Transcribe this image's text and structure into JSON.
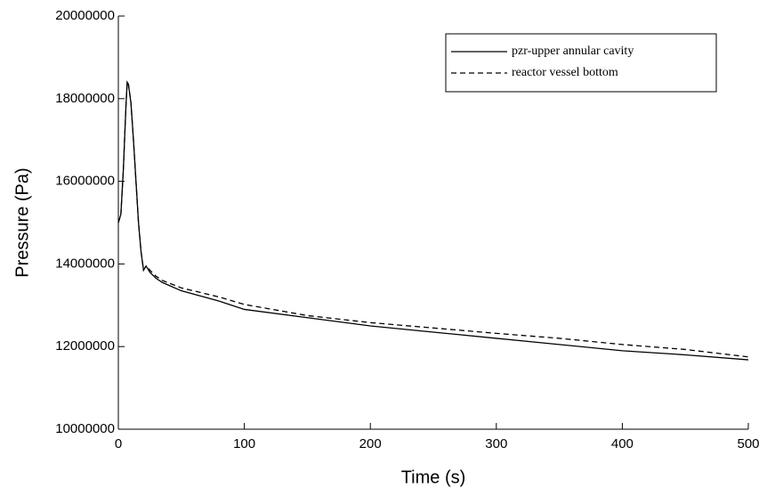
{
  "chart_data": {
    "type": "line",
    "x_label": "Time (s)",
    "y_label": "Pressure (Pa)",
    "x": [
      0,
      2,
      4,
      6,
      7,
      8,
      10,
      12,
      14,
      16,
      18,
      20,
      22,
      25,
      30,
      35,
      50,
      80,
      100,
      150,
      200,
      250,
      300,
      350,
      400,
      450,
      500
    ],
    "series": [
      {
        "name": "pzr-upper annular cavity",
        "color": "#000000",
        "linestyle": "solid",
        "values": [
          15000000,
          15200000,
          16300000,
          17800000,
          18400000,
          18350000,
          17900000,
          17000000,
          16000000,
          15000000,
          14300000,
          13850000,
          13950000,
          13800000,
          13650000,
          13550000,
          13350000,
          13100000,
          12900000,
          12700000,
          12500000,
          12350000,
          12200000,
          12050000,
          11900000,
          11800000,
          11680000
        ]
      },
      {
        "name": "reactor vessel bottom",
        "color": "#000000",
        "linestyle": "dashed",
        "values": [
          15000000,
          15200000,
          16300000,
          17800000,
          18400000,
          18350000,
          17900000,
          17000000,
          16000000,
          15000000,
          14300000,
          13850000,
          13950000,
          13850000,
          13700000,
          13600000,
          13420000,
          13200000,
          13020000,
          12750000,
          12580000,
          12450000,
          12320000,
          12200000,
          12050000,
          11930000,
          11750000
        ]
      }
    ],
    "xlim": [
      0,
      500
    ],
    "xticks": [
      0,
      100,
      200,
      300,
      400,
      500
    ],
    "ylim": [
      10000000,
      20000000
    ],
    "yticks": [
      10000000,
      12000000,
      14000000,
      16000000,
      18000000,
      20000000
    ],
    "grid": false,
    "legend": "upper right"
  }
}
